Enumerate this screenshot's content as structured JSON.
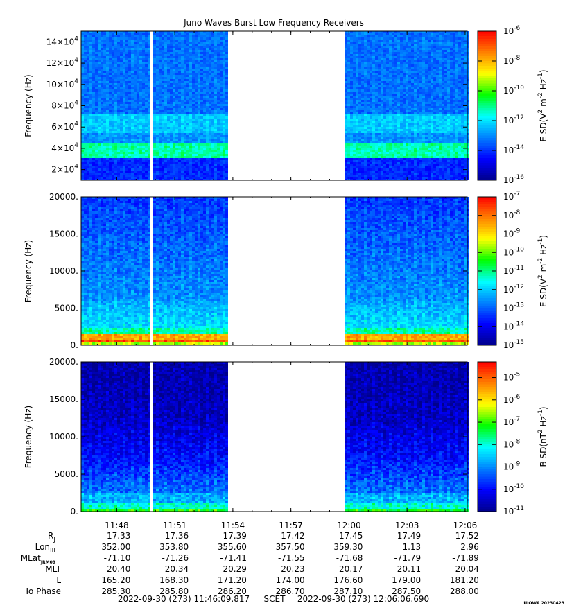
{
  "chart_data": [
    {
      "type": "heatmap",
      "title": "Juno Waves Burst Low Frequency Receivers",
      "ylabel": "Frequency (Hz)",
      "ylim": [
        10000,
        150000
      ],
      "y_tick_values": [
        20000,
        40000,
        60000,
        80000,
        100000,
        120000,
        140000
      ],
      "y_tick_mantissas": [
        "2",
        "4",
        "6",
        "8",
        "10",
        "12",
        "14"
      ],
      "y_tick_base": "10",
      "y_tick_exponent": "4",
      "colorbar_label": "E SD(V",
      "colorbar_label_sup1": "2",
      "colorbar_label_mid": " m",
      "colorbar_label_sup2": "-2",
      "colorbar_label_mid2": " Hz",
      "colorbar_label_sup3": "-1",
      "colorbar_label_end": ")",
      "colorbar_exponents": [
        -6,
        -8,
        -10,
        -12,
        -14,
        -16
      ],
      "colorbar_range": [
        -16,
        -6
      ],
      "colorbar_base": "10",
      "bands": [
        {
          "y_from": 30000,
          "y_to": 45000,
          "level": -11.3
        },
        {
          "y_from": 45000,
          "y_to": 55000,
          "level": -13.0
        },
        {
          "y_from": 55000,
          "y_to": 72000,
          "level": -12.4
        },
        {
          "y_from": 10000,
          "y_to": 30000,
          "level": -14.2
        },
        {
          "y_from": 72000,
          "y_to": 150000,
          "level": -13.4
        }
      ]
    },
    {
      "type": "heatmap",
      "ylabel": "Frequency (Hz)",
      "ylim": [
        0,
        20000
      ],
      "y_ticks": [
        "0.",
        "5000.",
        "10000.",
        "15000.",
        "20000."
      ],
      "y_tick_values": [
        0,
        5000,
        10000,
        15000,
        20000
      ],
      "colorbar_label": "E SD(V",
      "colorbar_label_sup1": "2",
      "colorbar_label_mid": " m",
      "colorbar_label_sup2": "-2",
      "colorbar_label_mid2": " Hz",
      "colorbar_label_sup3": "-1",
      "colorbar_label_end": ")",
      "colorbar_exponents": [
        -7,
        -8,
        -9,
        -10,
        -11,
        -12,
        -13,
        -14,
        -15
      ],
      "colorbar_range": [
        -15,
        -7
      ],
      "colorbar_base": "10"
    },
    {
      "type": "heatmap",
      "ylabel": "Frequency (Hz)",
      "ylim": [
        0,
        20000
      ],
      "y_ticks": [
        "0.",
        "5000.",
        "10000.",
        "15000.",
        "20000."
      ],
      "y_tick_values": [
        0,
        5000,
        10000,
        15000,
        20000
      ],
      "colorbar_label": "B SD(nT",
      "colorbar_label_sup1": "2",
      "colorbar_label_mid": " Hz",
      "colorbar_label_sup2": "-1",
      "colorbar_label_end": ")",
      "colorbar_exponents": [
        -5,
        -6,
        -7,
        -8,
        -9,
        -10,
        -11
      ],
      "colorbar_range": [
        -11,
        -4.3
      ],
      "colorbar_base": "10"
    }
  ],
  "time_axis": {
    "start_minutes": 706.16,
    "end_minutes": 726.11,
    "tick_minutes": [
      708,
      711,
      714,
      717,
      720,
      723,
      726
    ],
    "tick_labels": [
      "11:48",
      "11:51",
      "11:54",
      "11:57",
      "12:00",
      "12:03",
      "12:06"
    ],
    "gap_minutes": [
      [
        709.7,
        709.92
      ],
      [
        713.8,
        719.7
      ]
    ]
  },
  "ephemeris": {
    "rows": [
      {
        "label": "R",
        "sub": "J",
        "values": [
          "17.33",
          "17.36",
          "17.39",
          "17.42",
          "17.45",
          "17.49",
          "17.52"
        ]
      },
      {
        "label": "Lon",
        "sub": "III",
        "values": [
          "352.00",
          "353.80",
          "355.60",
          "357.50",
          "359.30",
          "1.13",
          "2.96"
        ]
      },
      {
        "label": "MLat",
        "sub": "JRM09",
        "values": [
          "-71.10",
          "-71.26",
          "-71.41",
          "-71.55",
          "-71.68",
          "-71.79",
          "-71.89"
        ]
      },
      {
        "label": "MLT",
        "sub": "",
        "values": [
          "20.40",
          "20.34",
          "20.29",
          "20.23",
          "20.17",
          "20.11",
          "20.04"
        ]
      },
      {
        "label": "L",
        "sub": "",
        "values": [
          "165.20",
          "168.30",
          "171.20",
          "174.00",
          "176.60",
          "179.00",
          "181.20"
        ]
      },
      {
        "label": "Io Phase",
        "sub": "",
        "values": [
          "285.30",
          "285.80",
          "286.20",
          "286.70",
          "287.10",
          "287.50",
          "288.00"
        ]
      }
    ]
  },
  "footer": {
    "start": "2022-09-30 (273) 11:46:09.817",
    "scet": "SCET",
    "end": "2022-09-30 (273) 12:06:06.690",
    "stamp": "UIOWA 20230423"
  },
  "colors": {
    "colormap": [
      "#00008c",
      "#0000ff",
      "#0080ff",
      "#00ffff",
      "#00ff00",
      "#ffff00",
      "#ff8000",
      "#ff0000"
    ]
  }
}
